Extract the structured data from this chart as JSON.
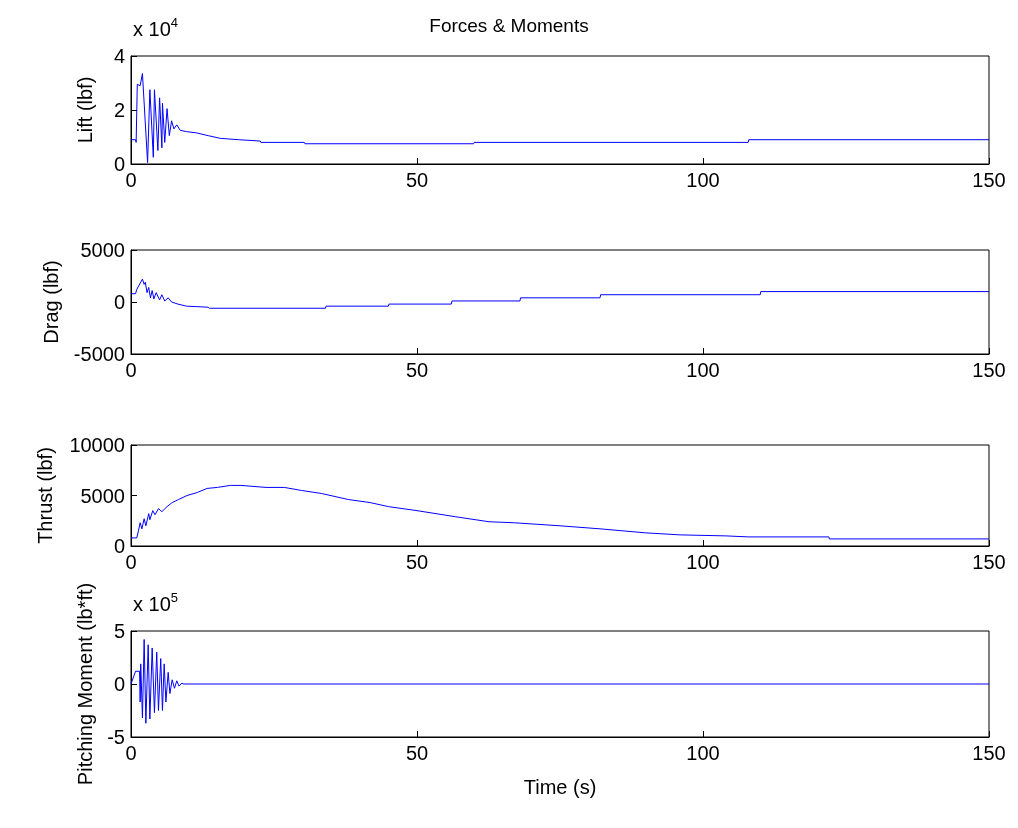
{
  "chart_data": [
    {
      "type": "line",
      "title": "Forces & Moments",
      "ylabel": "Lift (lbf)",
      "annotations": [
        "x 10$^{4}$"
      ],
      "xlim": [
        0,
        150
      ],
      "xticks": [
        0,
        50,
        100,
        150
      ],
      "ylim": [
        0,
        4
      ],
      "yticks": [
        0,
        2,
        4
      ],
      "series": [
        {
          "color": "#0000ff",
          "x": [
            0,
            0.8,
            0.9,
            1.1,
            1.6,
            2.0,
            2.9,
            3.3,
            3.9,
            4.1,
            4.7,
            5.0,
            5.4,
            5.5,
            5.9,
            6.3,
            6.7,
            7.1,
            7.5,
            8.0,
            8.6,
            9.7,
            11.5,
            13.5,
            15.6,
            18.8,
            22.6,
            22.7,
            30.3,
            30.4,
            59.9,
            60,
            107.9,
            108,
            150
          ],
          "values": [
            0.9,
            0.9,
            0.8,
            2.95,
            2.9,
            3.35,
            0.05,
            2.75,
            0.25,
            2.75,
            0.5,
            2.45,
            0.6,
            2.25,
            0.8,
            2.05,
            1.05,
            1.6,
            1.3,
            1.45,
            1.25,
            1.2,
            1.15,
            1.05,
            0.95,
            0.9,
            0.85,
            0.8,
            0.8,
            0.75,
            0.75,
            0.8,
            0.8,
            0.9,
            0.9
          ]
        }
      ]
    },
    {
      "type": "line",
      "ylabel": "Drag (lbf)",
      "xlim": [
        0,
        150
      ],
      "xticks": [
        0,
        50,
        100,
        150
      ],
      "ylim": [
        -5000,
        5000
      ],
      "yticks": [
        -5000,
        0,
        5000
      ],
      "series": [
        {
          "color": "#0000ff",
          "x": [
            0,
            0.8,
            1.0,
            2.0,
            2.3,
            2.5,
            2.8,
            3.1,
            3.4,
            3.7,
            4.0,
            4.4,
            5.0,
            5.4,
            5.9,
            6.5,
            7.1,
            8.2,
            9.7,
            13.5,
            13.7,
            34,
            34.1,
            45,
            45.1,
            56,
            56.1,
            68,
            68.1,
            82,
            82.1,
            110,
            110.1,
            150
          ],
          "values": [
            800,
            800,
            1200,
            2200,
            1700,
            1900,
            900,
            1400,
            400,
            1100,
            300,
            900,
            200,
            700,
            100,
            400,
            0,
            -200,
            -400,
            -500,
            -600,
            -600,
            -400,
            -400,
            -200,
            -200,
            100,
            100,
            400,
            400,
            700,
            700,
            1000,
            1000
          ]
        }
      ]
    },
    {
      "type": "line",
      "ylabel": "Thrust (lbf)",
      "xlim": [
        0,
        150
      ],
      "xticks": [
        0,
        50,
        100,
        150
      ],
      "ylim": [
        0,
        10000
      ],
      "yticks": [
        0,
        5000,
        10000
      ],
      "series": [
        {
          "color": "#0000ff",
          "x": [
            0,
            1.0,
            1.3,
            1.6,
            1.9,
            2.3,
            2.6,
            3.1,
            3.3,
            3.8,
            4.2,
            4.8,
            5.4,
            6.3,
            7.2,
            8.3,
            9.8,
            11.6,
            13.3,
            15.1,
            17.4,
            19.2,
            23.6,
            26.8,
            29.8,
            33.3,
            38,
            41.8,
            45,
            50,
            56.7,
            62.6,
            67,
            75,
            82,
            90,
            96,
            104,
            108,
            122,
            122.1,
            150
          ],
          "values": [
            800,
            800,
            1500,
            2300,
            1700,
            2700,
            2000,
            3200,
            2600,
            3500,
            3100,
            3700,
            3400,
            3900,
            4300,
            4600,
            5000,
            5300,
            5700,
            5800,
            6000,
            6000,
            5800,
            5800,
            5500,
            5200,
            4600,
            4300,
            3900,
            3500,
            2900,
            2400,
            2300,
            2000,
            1700,
            1300,
            1100,
            1000,
            900,
            900,
            700,
            700
          ]
        }
      ]
    },
    {
      "type": "line",
      "ylabel": "Pitching Moment (lb*ft)",
      "xlabel": "Time (s)",
      "annotations": [
        "x 10$^{5}$"
      ],
      "xlim": [
        0,
        150
      ],
      "xticks": [
        0,
        50,
        100,
        150
      ],
      "ylim": [
        -5,
        5
      ],
      "yticks": [
        -5,
        0,
        5
      ],
      "series": [
        {
          "color": "#0000ff",
          "x": [
            0,
            0.8,
            1.5,
            1.6,
            1.7,
            2.0,
            2.3,
            2.6,
            3.0,
            3.3,
            3.7,
            4.1,
            4.5,
            4.8,
            5.2,
            5.5,
            5.8,
            6.1,
            6.5,
            6.8,
            7.2,
            7.6,
            8.0,
            8.4,
            8.9,
            9.1,
            150
          ],
          "values": [
            0,
            1.2,
            1.2,
            -1.7,
            1.9,
            -3.2,
            4.2,
            -3.7,
            3.7,
            -3.3,
            3.4,
            -2.7,
            3.0,
            -2.5,
            2.4,
            -2.5,
            1.9,
            -1.7,
            1.1,
            -0.9,
            0.4,
            -0.4,
            0.3,
            -0.2,
            0.1,
            0,
            0
          ]
        }
      ]
    }
  ]
}
